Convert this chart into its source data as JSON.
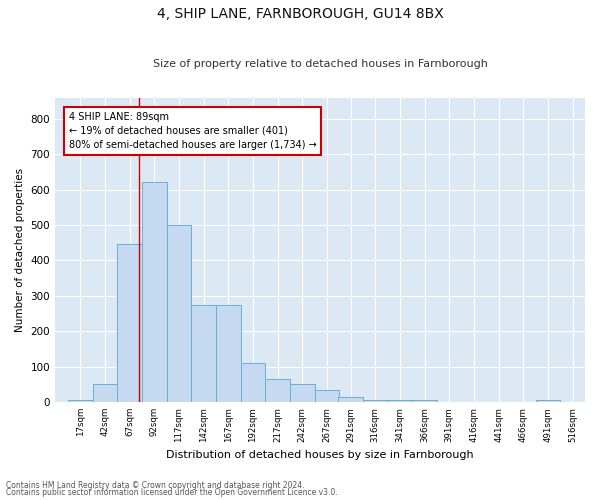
{
  "title": "4, SHIP LANE, FARNBOROUGH, GU14 8BX",
  "subtitle": "Size of property relative to detached houses in Farnborough",
  "xlabel": "Distribution of detached houses by size in Farnborough",
  "ylabel": "Number of detached properties",
  "bar_color": "#c5d9f0",
  "bar_edge_color": "#6baed6",
  "background_color": "#dce9f5",
  "grid_color": "#ffffff",
  "fig_facecolor": "#ffffff",
  "annotation_text": "4 SHIP LANE: 89sqm\n← 19% of detached houses are smaller (401)\n80% of semi-detached houses are larger (1,734) →",
  "red_line_x": 89,
  "categories": [
    17,
    42,
    67,
    92,
    117,
    142,
    167,
    192,
    217,
    242,
    267,
    291,
    316,
    341,
    366,
    391,
    416,
    441,
    466,
    491,
    516
  ],
  "bar_heights": [
    5,
    50,
    445,
    620,
    500,
    275,
    275,
    110,
    65,
    50,
    35,
    15,
    5,
    5,
    5,
    0,
    0,
    0,
    0,
    5,
    0
  ],
  "bin_width": 25,
  "ylim": [
    0,
    860
  ],
  "yticks": [
    0,
    100,
    200,
    300,
    400,
    500,
    600,
    700,
    800
  ],
  "xlim": [
    4,
    541
  ],
  "footnote1": "Contains HM Land Registry data © Crown copyright and database right 2024.",
  "footnote2": "Contains public sector information licensed under the Open Government Licence v3.0."
}
